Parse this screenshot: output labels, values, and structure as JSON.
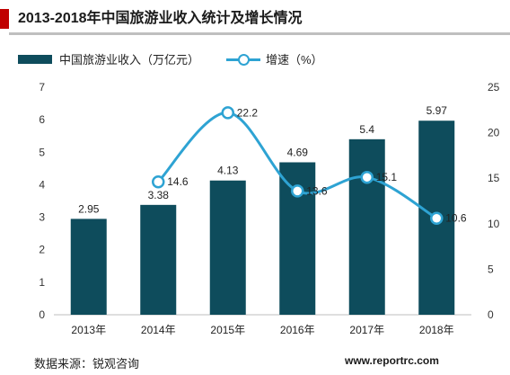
{
  "title": "2013-2018年中国旅游业收入统计及增长情况",
  "source": "数据来源：锐观咨询",
  "watermark": "www.reportrc.com",
  "colors": {
    "bar": "#0e4c5c",
    "line": "#2ea3d3",
    "accent": "#c00000",
    "rule": "#bfbfbf"
  },
  "chart_data": {
    "type": "bar",
    "categories": [
      "2013年",
      "2014年",
      "2015年",
      "2016年",
      "2017年",
      "2018年"
    ],
    "series": [
      {
        "name": "中国旅游业收入（万亿元）",
        "type": "bar",
        "axis": "left",
        "values": [
          2.95,
          3.38,
          4.13,
          4.69,
          5.4,
          5.97
        ],
        "labels": [
          "2.95",
          "3.38",
          "4.13",
          "4.69",
          "5.4",
          "5.97"
        ]
      },
      {
        "name": "增速（%）",
        "type": "line",
        "axis": "right",
        "values": [
          null,
          14.6,
          22.2,
          13.6,
          15.1,
          10.6
        ],
        "labels": [
          "",
          "14.6",
          "22.2",
          "13.6",
          "15.1",
          "10.6"
        ]
      }
    ],
    "y_left": {
      "min": 0,
      "max": 7,
      "ticks": [
        0,
        1,
        2,
        3,
        4,
        5,
        6,
        7
      ]
    },
    "y_right": {
      "min": 0,
      "max": 25,
      "ticks": [
        0,
        5,
        10,
        15,
        20,
        25
      ]
    },
    "grid": false,
    "legend": "top-left"
  }
}
